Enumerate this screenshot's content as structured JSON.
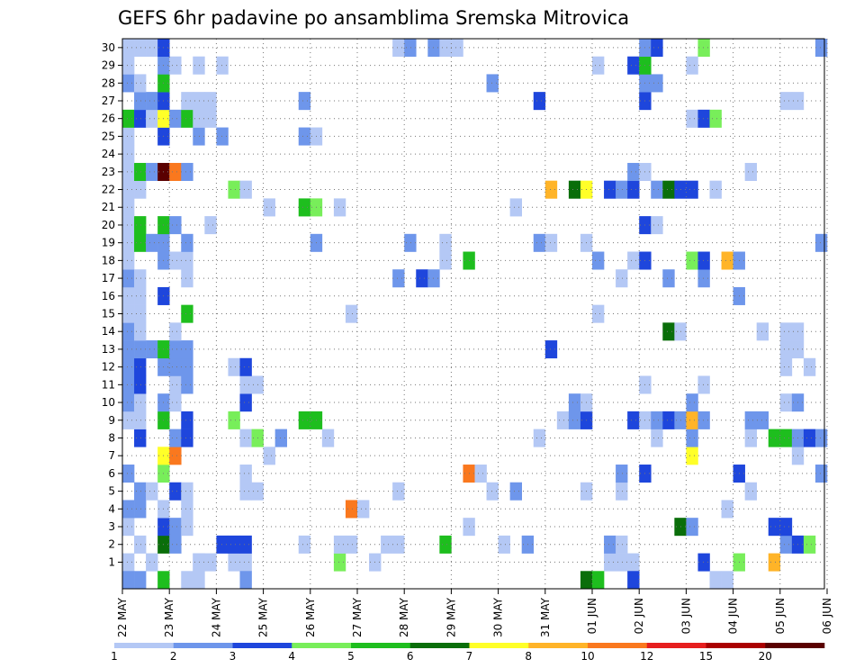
{
  "chart_data": {
    "type": "heatmap",
    "title": "GEFS 6hr padavine po ansamblima Sremska Mitrovica",
    "xlabel": "",
    "ylabel": "",
    "y_members": [
      1,
      2,
      3,
      4,
      5,
      6,
      7,
      8,
      9,
      10,
      11,
      12,
      13,
      14,
      15,
      16,
      17,
      18,
      19,
      20,
      21,
      22,
      23,
      24,
      25,
      26,
      27,
      28,
      29,
      30
    ],
    "x_tick_labels": [
      "22 MAY",
      "23 MAY",
      "24 MAY",
      "25 MAY",
      "26 MAY",
      "27 MAY",
      "28 MAY",
      "29 MAY",
      "30 MAY",
      "31 MAY",
      "01 JUN",
      "02 JUN",
      "03 JUN",
      "04 JUN",
      "05 JUN",
      "06 JUN"
    ],
    "steps_per_day": 4,
    "grid": true,
    "color_scale": {
      "labels": [
        "1",
        "2",
        "3",
        "4",
        "5",
        "6",
        "7",
        "8",
        "10",
        "12",
        "15",
        "20"
      ],
      "bin_edges": [
        1,
        2,
        3,
        4,
        5,
        6,
        7,
        8,
        10,
        12,
        15,
        20
      ],
      "colors": [
        "#b4c8f5",
        "#6e96eb",
        "#1e46dc",
        "#78ee5a",
        "#1ebe1e",
        "#0a6e0a",
        "#ffff28",
        "#ffb428",
        "#fa781e",
        "#e61e1e",
        "#aa0000",
        "#5a0000"
      ]
    },
    "cells_note": "each cell: [step index from 22 MAY 00Z (6-hourly), ensemble member, color bin index]",
    "cells": [
      [
        0,
        1,
        0
      ],
      [
        2,
        1,
        0
      ],
      [
        6,
        1,
        0
      ],
      [
        6,
        1,
        0
      ],
      [
        7,
        1,
        0
      ],
      [
        9,
        1,
        0
      ],
      [
        10,
        1,
        0
      ],
      [
        18,
        1,
        3
      ],
      [
        21,
        1,
        0
      ],
      [
        41,
        1,
        0
      ],
      [
        42,
        1,
        0
      ],
      [
        43,
        1,
        0
      ],
      [
        49,
        1,
        2
      ],
      [
        52,
        1,
        3
      ],
      [
        55,
        1,
        7
      ],
      [
        1,
        2,
        0
      ],
      [
        3,
        2,
        5
      ],
      [
        4,
        2,
        1
      ],
      [
        8,
        2,
        2
      ],
      [
        9,
        2,
        2
      ],
      [
        10,
        2,
        2
      ],
      [
        15,
        2,
        0
      ],
      [
        18,
        2,
        0
      ],
      [
        19,
        2,
        0
      ],
      [
        22,
        2,
        0
      ],
      [
        23,
        2,
        0
      ],
      [
        27,
        2,
        4
      ],
      [
        32,
        2,
        0
      ],
      [
        34,
        2,
        1
      ],
      [
        41,
        2,
        1
      ],
      [
        42,
        2,
        0
      ],
      [
        56,
        2,
        1
      ],
      [
        57,
        2,
        2
      ],
      [
        58,
        2,
        3
      ],
      [
        0,
        3,
        0
      ],
      [
        3,
        3,
        2
      ],
      [
        4,
        3,
        1
      ],
      [
        5,
        3,
        0
      ],
      [
        29,
        3,
        0
      ],
      [
        47,
        3,
        5
      ],
      [
        48,
        3,
        1
      ],
      [
        55,
        3,
        2
      ],
      [
        56,
        3,
        2
      ],
      [
        0,
        4,
        1
      ],
      [
        1,
        4,
        1
      ],
      [
        3,
        4,
        0
      ],
      [
        5,
        4,
        0
      ],
      [
        19,
        4,
        8
      ],
      [
        20,
        4,
        0
      ],
      [
        51,
        4,
        0
      ],
      [
        1,
        5,
        1
      ],
      [
        2,
        5,
        0
      ],
      [
        4,
        5,
        2
      ],
      [
        5,
        5,
        0
      ],
      [
        10,
        5,
        0
      ],
      [
        11,
        5,
        0
      ],
      [
        23,
        5,
        0
      ],
      [
        31,
        5,
        0
      ],
      [
        33,
        5,
        1
      ],
      [
        39,
        5,
        0
      ],
      [
        42,
        5,
        0
      ],
      [
        53,
        5,
        0
      ],
      [
        0,
        6,
        1
      ],
      [
        3,
        6,
        3
      ],
      [
        10,
        6,
        0
      ],
      [
        29,
        6,
        8
      ],
      [
        30,
        6,
        0
      ],
      [
        42,
        6,
        1
      ],
      [
        44,
        6,
        2
      ],
      [
        52,
        6,
        2
      ],
      [
        59,
        6,
        1
      ],
      [
        3,
        7,
        6
      ],
      [
        4,
        7,
        8
      ],
      [
        12,
        7,
        0
      ],
      [
        48,
        7,
        6
      ],
      [
        57,
        7,
        0
      ],
      [
        1,
        8,
        2
      ],
      [
        4,
        8,
        1
      ],
      [
        5,
        8,
        2
      ],
      [
        10,
        8,
        0
      ],
      [
        11,
        8,
        3
      ],
      [
        13,
        8,
        1
      ],
      [
        17,
        8,
        0
      ],
      [
        35,
        8,
        0
      ],
      [
        45,
        8,
        0
      ],
      [
        48,
        8,
        1
      ],
      [
        53,
        8,
        0
      ],
      [
        55,
        8,
        4
      ],
      [
        56,
        8,
        4
      ],
      [
        57,
        8,
        1
      ],
      [
        58,
        8,
        2
      ],
      [
        59,
        8,
        1
      ],
      [
        0,
        9,
        0
      ],
      [
        1,
        9,
        0
      ],
      [
        3,
        9,
        4
      ],
      [
        5,
        9,
        2
      ],
      [
        9,
        9,
        3
      ],
      [
        15,
        9,
        4
      ],
      [
        16,
        9,
        4
      ],
      [
        37,
        9,
        0
      ],
      [
        38,
        9,
        1
      ],
      [
        39,
        9,
        2
      ],
      [
        43,
        9,
        2
      ],
      [
        44,
        9,
        0
      ],
      [
        45,
        9,
        1
      ],
      [
        46,
        9,
        2
      ],
      [
        47,
        9,
        1
      ],
      [
        48,
        9,
        7
      ],
      [
        49,
        9,
        1
      ],
      [
        53,
        9,
        1
      ],
      [
        54,
        9,
        1
      ],
      [
        0,
        10,
        1
      ],
      [
        1,
        10,
        0
      ],
      [
        3,
        10,
        1
      ],
      [
        4,
        10,
        0
      ],
      [
        10,
        10,
        2
      ],
      [
        38,
        10,
        1
      ],
      [
        39,
        10,
        0
      ],
      [
        48,
        10,
        1
      ],
      [
        56,
        10,
        0
      ],
      [
        57,
        10,
        1
      ],
      [
        0,
        11,
        1
      ],
      [
        1,
        11,
        2
      ],
      [
        4,
        11,
        0
      ],
      [
        5,
        11,
        1
      ],
      [
        10,
        11,
        0
      ],
      [
        11,
        11,
        0
      ],
      [
        44,
        11,
        0
      ],
      [
        49,
        11,
        0
      ],
      [
        0,
        12,
        1
      ],
      [
        1,
        12,
        2
      ],
      [
        3,
        12,
        1
      ],
      [
        4,
        12,
        1
      ],
      [
        5,
        12,
        1
      ],
      [
        9,
        12,
        0
      ],
      [
        10,
        12,
        2
      ],
      [
        56,
        12,
        0
      ],
      [
        58,
        12,
        0
      ],
      [
        0,
        13,
        1
      ],
      [
        1,
        13,
        1
      ],
      [
        2,
        13,
        1
      ],
      [
        3,
        13,
        4
      ],
      [
        4,
        13,
        1
      ],
      [
        5,
        13,
        1
      ],
      [
        36,
        13,
        2
      ],
      [
        56,
        13,
        0
      ],
      [
        57,
        13,
        0
      ],
      [
        0,
        14,
        1
      ],
      [
        1,
        14,
        0
      ],
      [
        4,
        14,
        0
      ],
      [
        46,
        14,
        5
      ],
      [
        47,
        14,
        0
      ],
      [
        54,
        14,
        0
      ],
      [
        56,
        14,
        0
      ],
      [
        57,
        14,
        0
      ],
      [
        0,
        15,
        0
      ],
      [
        1,
        15,
        0
      ],
      [
        5,
        15,
        4
      ],
      [
        19,
        15,
        0
      ],
      [
        40,
        15,
        0
      ],
      [
        0,
        16,
        0
      ],
      [
        1,
        16,
        0
      ],
      [
        3,
        16,
        2
      ],
      [
        52,
        16,
        1
      ],
      [
        0,
        17,
        1
      ],
      [
        1,
        17,
        0
      ],
      [
        5,
        17,
        0
      ],
      [
        23,
        17,
        1
      ],
      [
        25,
        17,
        2
      ],
      [
        26,
        17,
        1
      ],
      [
        42,
        17,
        0
      ],
      [
        46,
        17,
        1
      ],
      [
        49,
        17,
        1
      ],
      [
        0,
        18,
        0
      ],
      [
        3,
        18,
        1
      ],
      [
        4,
        18,
        0
      ],
      [
        5,
        18,
        0
      ],
      [
        27,
        18,
        0
      ],
      [
        29,
        18,
        4
      ],
      [
        40,
        18,
        1
      ],
      [
        43,
        18,
        0
      ],
      [
        44,
        18,
        2
      ],
      [
        48,
        18,
        3
      ],
      [
        49,
        18,
        2
      ],
      [
        51,
        18,
        7
      ],
      [
        52,
        18,
        1
      ],
      [
        0,
        19,
        0
      ],
      [
        1,
        19,
        4
      ],
      [
        2,
        19,
        1
      ],
      [
        3,
        19,
        1
      ],
      [
        5,
        19,
        1
      ],
      [
        16,
        19,
        1
      ],
      [
        24,
        19,
        1
      ],
      [
        27,
        19,
        0
      ],
      [
        35,
        19,
        1
      ],
      [
        36,
        19,
        0
      ],
      [
        39,
        19,
        0
      ],
      [
        59,
        19,
        1
      ],
      [
        0,
        20,
        0
      ],
      [
        1,
        20,
        4
      ],
      [
        3,
        20,
        4
      ],
      [
        4,
        20,
        1
      ],
      [
        7,
        20,
        0
      ],
      [
        44,
        20,
        2
      ],
      [
        45,
        20,
        0
      ],
      [
        0,
        21,
        0
      ],
      [
        12,
        21,
        0
      ],
      [
        15,
        21,
        4
      ],
      [
        16,
        21,
        3
      ],
      [
        18,
        21,
        0
      ],
      [
        33,
        21,
        0
      ],
      [
        0,
        22,
        0
      ],
      [
        1,
        22,
        0
      ],
      [
        9,
        22,
        3
      ],
      [
        10,
        22,
        0
      ],
      [
        36,
        22,
        7
      ],
      [
        38,
        22,
        5
      ],
      [
        39,
        22,
        6
      ],
      [
        41,
        22,
        2
      ],
      [
        42,
        22,
        1
      ],
      [
        43,
        22,
        2
      ],
      [
        45,
        22,
        1
      ],
      [
        46,
        22,
        5
      ],
      [
        47,
        22,
        2
      ],
      [
        48,
        22,
        2
      ],
      [
        50,
        22,
        0
      ],
      [
        0,
        23,
        0
      ],
      [
        1,
        23,
        4
      ],
      [
        2,
        23,
        1
      ],
      [
        3,
        23,
        11
      ],
      [
        4,
        23,
        8
      ],
      [
        5,
        23,
        1
      ],
      [
        43,
        23,
        1
      ],
      [
        44,
        23,
        0
      ],
      [
        53,
        23,
        0
      ],
      [
        0,
        24,
        0
      ],
      [
        0,
        25,
        0
      ],
      [
        3,
        25,
        2
      ],
      [
        6,
        25,
        1
      ],
      [
        8,
        25,
        1
      ],
      [
        15,
        25,
        1
      ],
      [
        16,
        25,
        0
      ],
      [
        0,
        26,
        4
      ],
      [
        1,
        26,
        2
      ],
      [
        2,
        26,
        0
      ],
      [
        3,
        26,
        6
      ],
      [
        4,
        26,
        1
      ],
      [
        5,
        26,
        4
      ],
      [
        6,
        26,
        0
      ],
      [
        7,
        26,
        0
      ],
      [
        48,
        26,
        0
      ],
      [
        49,
        26,
        2
      ],
      [
        50,
        26,
        3
      ],
      [
        1,
        27,
        1
      ],
      [
        2,
        27,
        1
      ],
      [
        3,
        27,
        2
      ],
      [
        5,
        27,
        0
      ],
      [
        6,
        27,
        0
      ],
      [
        7,
        27,
        0
      ],
      [
        15,
        27,
        1
      ],
      [
        35,
        27,
        2
      ],
      [
        44,
        27,
        2
      ],
      [
        56,
        27,
        0
      ],
      [
        57,
        27,
        0
      ],
      [
        0,
        28,
        1
      ],
      [
        1,
        28,
        0
      ],
      [
        3,
        28,
        4
      ],
      [
        31,
        28,
        1
      ],
      [
        44,
        28,
        1
      ],
      [
        45,
        28,
        1
      ],
      [
        0,
        29,
        0
      ],
      [
        3,
        29,
        1
      ],
      [
        4,
        29,
        0
      ],
      [
        6,
        29,
        0
      ],
      [
        8,
        29,
        0
      ],
      [
        40,
        29,
        0
      ],
      [
        43,
        29,
        2
      ],
      [
        44,
        29,
        4
      ],
      [
        48,
        29,
        0
      ],
      [
        0,
        30,
        0
      ],
      [
        1,
        30,
        0
      ],
      [
        2,
        30,
        0
      ],
      [
        3,
        30,
        2
      ],
      [
        23,
        30,
        0
      ],
      [
        24,
        30,
        1
      ],
      [
        26,
        30,
        1
      ],
      [
        27,
        30,
        0
      ],
      [
        28,
        30,
        0
      ],
      [
        44,
        30,
        1
      ],
      [
        45,
        30,
        2
      ],
      [
        49,
        30,
        3
      ],
      [
        59,
        30,
        1
      ],
      [
        0,
        0,
        1
      ],
      [
        1,
        0,
        1
      ],
      [
        3,
        0,
        4
      ],
      [
        5,
        0,
        0
      ],
      [
        6,
        0,
        0
      ],
      [
        10,
        0,
        1
      ],
      [
        39,
        0,
        5
      ],
      [
        40,
        0,
        4
      ],
      [
        43,
        0,
        2
      ],
      [
        50,
        0,
        0
      ],
      [
        51,
        0,
        0
      ]
    ]
  }
}
